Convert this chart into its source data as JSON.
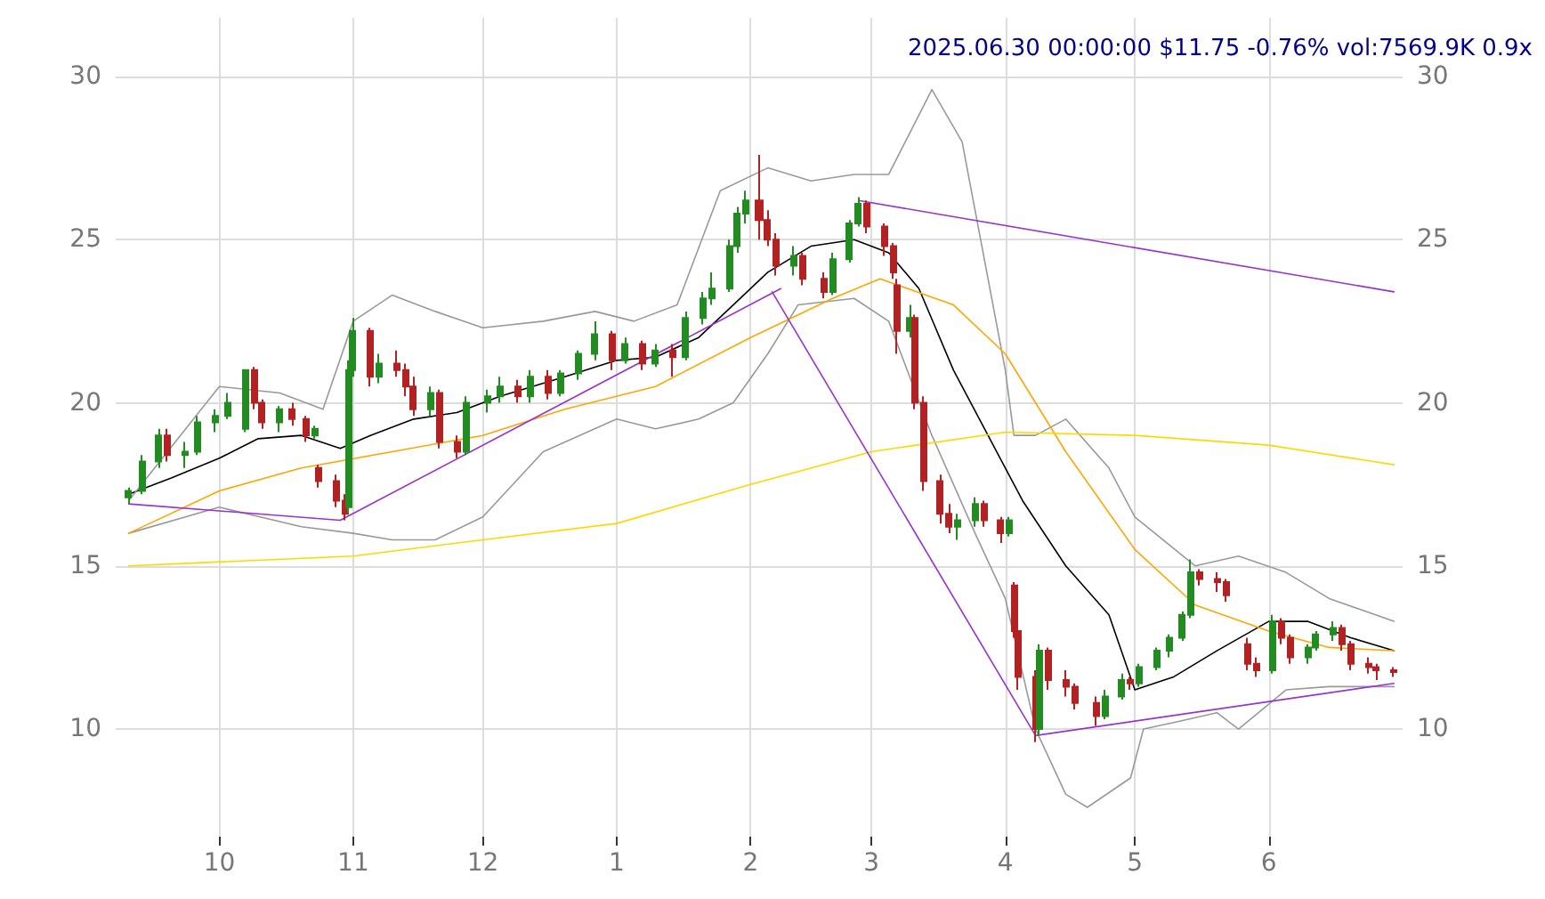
{
  "chart_data": {
    "type": "candlestick",
    "title": "2025.06.30 00:00:00 $11.75 -0.76% vol:7569.9K 0.9x",
    "xlim": [
      "2024-09-07",
      "2025-07-02"
    ],
    "xticks": [
      {
        "value": "2024-10-01",
        "label": "10"
      },
      {
        "value": "2024-11-01",
        "label": "11"
      },
      {
        "value": "2024-12-01",
        "label": "12"
      },
      {
        "value": "2025-01-01",
        "label": "1"
      },
      {
        "value": "2025-02-01",
        "label": "2"
      },
      {
        "value": "2025-03-01",
        "label": "3"
      },
      {
        "value": "2025-04-01",
        "label": "4"
      },
      {
        "value": "2025-05-01",
        "label": "5"
      },
      {
        "value": "2025-06-01",
        "label": "6"
      }
    ],
    "ylim": [
      6.7,
      31.8
    ],
    "yticks": [
      10,
      15,
      20,
      25,
      30
    ],
    "y2lim": [
      6.7,
      31.8
    ],
    "y2ticks": [
      10,
      15,
      20,
      25,
      30
    ],
    "grid": true,
    "marker": "none",
    "line_style": "solid",
    "series": [
      {
        "colors": [
          "#228b22",
          "#228b22",
          "#228b22",
          "#b22222",
          "#228b22",
          "#228b22",
          "#228b22",
          "#228b22",
          "#228b22",
          "#b22222",
          "#b22222",
          "#228b22",
          "#b22222",
          "#b22222",
          "#228b22",
          "#b22222",
          "#b22222",
          "#b22222",
          "#228b22",
          "#228b22",
          "#b22222",
          "#228b22",
          "#b22222",
          "#b22222",
          "#b22222",
          "#228b22",
          "#b22222",
          "#b22222",
          "#228b22",
          "#228b22",
          "#228b22",
          "#b22222",
          "#228b22",
          "#b22222",
          "#228b22",
          "#228b22",
          "#228b22",
          "#b22222",
          "#228b22",
          "#b22222",
          "#228b22",
          "#b22222",
          "#228b22",
          "#228b22",
          "#228b22",
          "#228b22",
          "#228b22",
          "#228b22",
          "#b22222",
          "#b22222",
          "#b22222",
          "#228b22",
          "#b22222",
          "#b22222",
          "#228b22",
          "#228b22",
          "#228b22",
          "#b22222",
          "#b22222",
          "#b22222",
          "#b22222",
          "#228b22",
          "#b22222",
          "#b22222",
          "#b22222",
          "#b22222",
          "#228b22",
          "#228b22",
          "#b22222",
          "#b22222",
          "#228b22",
          "#b22222",
          "#b22222",
          "#b22222",
          "#228b22",
          "#b22222",
          "#b22222",
          "#b22222",
          "#b22222",
          "#228b22",
          "#228b22",
          "#b22222",
          "#228b22",
          "#228b22",
          "#228b22",
          "#228b22",
          "#228b22",
          "#b22222",
          "#b22222",
          "#b22222",
          "#b22222",
          "#b22222",
          "#228b22",
          "#b22222",
          "#b22222",
          "#228b22",
          "#228b22",
          "#228b22",
          "#b22222",
          "#b22222",
          "#b22222",
          "#b22222",
          "#b22222"
        ],
        "x": [
          "2024-09-10",
          "2024-09-13",
          "2024-09-17",
          "2024-09-19",
          "2024-09-23",
          "2024-09-26",
          "2024-09-30",
          "2024-10-03",
          "2024-10-07",
          "2024-10-09",
          "2024-10-11",
          "2024-10-15",
          "2024-10-18",
          "2024-10-21",
          "2024-10-23",
          "2024-10-24",
          "2024-10-28",
          "2024-10-30",
          "2024-10-31",
          "2024-11-01",
          "2024-11-05",
          "2024-11-07",
          "2024-11-11",
          "2024-11-13",
          "2024-11-15",
          "2024-11-19",
          "2024-11-21",
          "2024-11-25",
          "2024-11-27",
          "2024-12-02",
          "2024-12-05",
          "2024-12-09",
          "2024-12-12",
          "2024-12-16",
          "2024-12-19",
          "2024-12-23",
          "2024-12-27",
          "2024-12-31",
          "2025-01-03",
          "2025-01-07",
          "2025-01-10",
          "2025-01-14",
          "2025-01-17",
          "2025-01-21",
          "2025-01-23",
          "2025-01-27",
          "2025-01-29",
          "2025-01-31",
          "2025-02-03",
          "2025-02-05",
          "2025-02-07",
          "2025-02-11",
          "2025-02-13",
          "2025-02-18",
          "2025-02-20",
          "2025-02-24",
          "2025-02-26",
          "2025-02-28",
          "2025-03-04",
          "2025-03-06",
          "2025-03-07",
          "2025-03-10",
          "2025-03-11",
          "2025-03-13",
          "2025-03-17",
          "2025-03-19",
          "2025-03-21",
          "2025-03-25",
          "2025-03-27",
          "2025-03-31",
          "2025-04-02",
          "2025-04-03",
          "2025-04-04",
          "2025-04-08",
          "2025-04-09",
          "2025-04-11",
          "2025-04-15",
          "2025-04-17",
          "2025-04-22",
          "2025-04-24",
          "2025-04-28",
          "2025-04-30",
          "2025-05-02",
          "2025-05-06",
          "2025-05-09",
          "2025-05-12",
          "2025-05-14",
          "2025-05-16",
          "2025-05-20",
          "2025-05-22",
          "2025-05-27",
          "2025-05-29",
          "2025-06-02",
          "2025-06-04",
          "2025-06-06",
          "2025-06-10",
          "2025-06-12",
          "2025-06-16",
          "2025-06-18",
          "2025-06-20",
          "2025-06-24",
          "2025-06-26",
          "2025-06-30"
        ],
        "ohlc": [
          [
            17.1,
            17.4,
            16.9,
            17.3
          ],
          [
            17.3,
            18.4,
            17.2,
            18.2
          ],
          [
            18.2,
            19.2,
            18.0,
            19.0
          ],
          [
            19.0,
            19.2,
            18.2,
            18.4
          ],
          [
            18.4,
            18.8,
            18.0,
            18.5
          ],
          [
            18.5,
            19.6,
            18.4,
            19.4
          ],
          [
            19.4,
            19.8,
            19.1,
            19.6
          ],
          [
            19.6,
            20.3,
            19.5,
            20.0
          ],
          [
            19.2,
            21.0,
            19.1,
            21.0
          ],
          [
            21.0,
            21.1,
            19.8,
            20.0
          ],
          [
            20.0,
            20.1,
            19.2,
            19.4
          ],
          [
            19.4,
            19.9,
            19.1,
            19.8
          ],
          [
            19.8,
            20.0,
            19.3,
            19.5
          ],
          [
            19.5,
            19.6,
            18.8,
            19.0
          ],
          [
            19.0,
            19.3,
            18.9,
            19.2
          ],
          [
            18.0,
            18.1,
            17.4,
            17.6
          ],
          [
            17.6,
            17.8,
            16.8,
            17.0
          ],
          [
            17.0,
            17.2,
            16.4,
            16.6
          ],
          [
            16.8,
            21.3,
            16.6,
            21.0
          ],
          [
            21.0,
            22.6,
            20.8,
            22.2
          ],
          [
            22.2,
            22.3,
            20.5,
            20.8
          ],
          [
            20.8,
            21.5,
            20.6,
            21.2
          ],
          [
            21.2,
            21.6,
            20.8,
            21.0
          ],
          [
            21.0,
            21.2,
            20.2,
            20.5
          ],
          [
            20.5,
            20.8,
            19.6,
            19.8
          ],
          [
            19.8,
            20.5,
            19.6,
            20.3
          ],
          [
            20.3,
            20.4,
            18.6,
            18.8
          ],
          [
            18.8,
            19.0,
            18.3,
            18.5
          ],
          [
            18.5,
            20.2,
            18.4,
            20.0
          ],
          [
            20.0,
            20.4,
            19.7,
            20.2
          ],
          [
            20.2,
            20.8,
            20.0,
            20.5
          ],
          [
            20.5,
            20.7,
            20.0,
            20.2
          ],
          [
            20.2,
            21.0,
            20.0,
            20.8
          ],
          [
            20.8,
            21.0,
            20.1,
            20.3
          ],
          [
            20.3,
            21.0,
            20.2,
            20.9
          ],
          [
            20.9,
            21.6,
            20.7,
            21.5
          ],
          [
            21.5,
            22.5,
            21.3,
            22.1
          ],
          [
            22.1,
            22.2,
            21.0,
            21.3
          ],
          [
            21.3,
            22.0,
            21.2,
            21.8
          ],
          [
            21.8,
            21.9,
            21.0,
            21.2
          ],
          [
            21.2,
            21.8,
            21.1,
            21.6
          ],
          [
            21.6,
            21.8,
            20.8,
            21.4
          ],
          [
            21.4,
            22.8,
            21.3,
            22.6
          ],
          [
            22.6,
            23.4,
            22.4,
            23.2
          ],
          [
            23.2,
            24.0,
            23.0,
            23.5
          ],
          [
            23.5,
            25.0,
            23.4,
            24.8
          ],
          [
            24.8,
            26.0,
            24.6,
            25.8
          ],
          [
            25.8,
            26.5,
            25.5,
            26.2
          ],
          [
            26.2,
            27.6,
            25.0,
            25.6
          ],
          [
            25.6,
            25.9,
            24.8,
            25.0
          ],
          [
            25.0,
            25.2,
            23.9,
            24.2
          ],
          [
            24.2,
            24.8,
            23.9,
            24.5
          ],
          [
            24.5,
            24.6,
            23.6,
            23.8
          ],
          [
            23.8,
            24.0,
            23.2,
            23.4
          ],
          [
            23.4,
            24.6,
            23.3,
            24.4
          ],
          [
            24.4,
            25.6,
            24.3,
            25.5
          ],
          [
            25.5,
            26.3,
            25.4,
            26.1
          ],
          [
            26.1,
            26.2,
            25.2,
            25.4
          ],
          [
            25.4,
            25.5,
            24.5,
            24.8
          ],
          [
            24.8,
            24.9,
            23.8,
            24.0
          ],
          [
            23.6,
            23.8,
            21.5,
            22.2
          ],
          [
            22.2,
            23.0,
            22.0,
            22.6
          ],
          [
            22.6,
            22.7,
            19.8,
            20.0
          ],
          [
            20.0,
            20.2,
            17.3,
            17.6
          ],
          [
            17.6,
            17.8,
            16.3,
            16.6
          ],
          [
            16.6,
            16.9,
            16.0,
            16.2
          ],
          [
            16.2,
            16.6,
            15.8,
            16.4
          ],
          [
            16.4,
            17.1,
            16.2,
            16.9
          ],
          [
            16.9,
            17.0,
            16.2,
            16.4
          ],
          [
            16.4,
            16.5,
            15.7,
            16.0
          ],
          [
            16.0,
            16.5,
            15.9,
            16.4
          ],
          [
            14.4,
            14.5,
            12.8,
            13.0
          ],
          [
            13.0,
            13.1,
            11.2,
            11.6
          ],
          [
            11.6,
            11.8,
            9.6,
            10.0
          ],
          [
            10.0,
            12.6,
            9.8,
            12.4
          ],
          [
            12.4,
            12.5,
            11.2,
            11.5
          ],
          [
            11.5,
            11.8,
            11.0,
            11.3
          ],
          [
            11.3,
            11.4,
            10.6,
            10.8
          ],
          [
            10.8,
            11.0,
            10.1,
            10.4
          ],
          [
            10.4,
            11.2,
            10.3,
            11.0
          ],
          [
            11.0,
            11.7,
            10.9,
            11.5
          ],
          [
            11.5,
            11.6,
            11.2,
            11.4
          ],
          [
            11.4,
            12.0,
            11.3,
            11.9
          ],
          [
            11.9,
            12.5,
            11.8,
            12.4
          ],
          [
            12.4,
            12.9,
            12.2,
            12.8
          ],
          [
            12.8,
            13.6,
            12.7,
            13.5
          ],
          [
            13.5,
            15.2,
            13.4,
            14.8
          ],
          [
            14.8,
            14.9,
            14.4,
            14.6
          ],
          [
            14.6,
            14.8,
            14.2,
            14.5
          ],
          [
            14.5,
            14.6,
            13.9,
            14.1
          ],
          [
            12.6,
            12.8,
            11.8,
            12.0
          ],
          [
            12.0,
            12.2,
            11.6,
            11.8
          ],
          [
            11.8,
            13.5,
            11.7,
            13.3
          ],
          [
            13.3,
            13.4,
            12.6,
            12.8
          ],
          [
            12.8,
            12.9,
            12.0,
            12.2
          ],
          [
            12.2,
            12.6,
            12.0,
            12.5
          ],
          [
            12.5,
            13.0,
            12.4,
            12.9
          ],
          [
            12.9,
            13.3,
            12.7,
            13.1
          ],
          [
            13.1,
            13.2,
            12.4,
            12.6
          ],
          [
            12.6,
            12.7,
            11.8,
            12.0
          ],
          [
            12.0,
            12.2,
            11.7,
            11.9
          ],
          [
            11.9,
            12.0,
            11.5,
            11.8
          ],
          [
            11.8,
            11.9,
            11.6,
            11.75
          ]
        ]
      },
      {
        "type": "line",
        "color": "#000000",
        "x": [
          "2024-09-10",
          "2024-09-20",
          "2024-10-01",
          "2024-10-10",
          "2024-10-20",
          "2024-10-29",
          "2024-11-05",
          "2024-11-15",
          "2024-11-25",
          "2024-12-05",
          "2024-12-20",
          "2025-01-01",
          "2025-01-10",
          "2025-01-20",
          "2025-01-28",
          "2025-02-05",
          "2025-02-15",
          "2025-02-25",
          "2025-03-05",
          "2025-03-12",
          "2025-03-20",
          "2025-03-28",
          "2025-04-05",
          "2025-04-15",
          "2025-04-25",
          "2025-05-01",
          "2025-05-10",
          "2025-05-20",
          "2025-06-01",
          "2025-06-10",
          "2025-06-20",
          "2025-06-30"
        ],
        "values": [
          17.2,
          17.7,
          18.3,
          18.9,
          19.0,
          18.6,
          19.0,
          19.5,
          19.7,
          20.2,
          20.8,
          21.3,
          21.4,
          22.0,
          23.0,
          24.0,
          24.8,
          25.0,
          24.6,
          23.5,
          21.0,
          19.0,
          17.0,
          15.0,
          13.5,
          11.2,
          11.6,
          12.4,
          13.3,
          13.3,
          12.8,
          12.4
        ]
      },
      {
        "type": "line",
        "color": "#999999",
        "x": [
          "2024-09-10",
          "2024-10-01",
          "2024-10-15",
          "2024-10-25",
          "2024-11-01",
          "2024-11-10",
          "2024-11-20",
          "2024-12-01",
          "2024-12-15",
          "2024-12-27",
          "2025-01-05",
          "2025-01-15",
          "2025-01-25",
          "2025-02-05",
          "2025-02-15",
          "2025-02-25",
          "2025-03-05",
          "2025-03-15",
          "2025-03-22",
          "2025-04-01",
          "2025-04-03",
          "2025-04-08",
          "2025-04-15",
          "2025-04-25",
          "2025-05-01",
          "2025-05-15",
          "2025-05-25",
          "2025-06-05",
          "2025-06-15",
          "2025-06-30"
        ],
        "values": [
          17.0,
          20.5,
          20.3,
          19.8,
          22.5,
          23.3,
          22.8,
          22.3,
          22.5,
          22.8,
          22.5,
          23.0,
          26.5,
          27.2,
          26.8,
          27.0,
          27.0,
          29.6,
          28.0,
          21.0,
          19.0,
          19.0,
          19.5,
          18.0,
          16.5,
          15.0,
          15.3,
          14.8,
          14.0,
          13.3
        ]
      },
      {
        "type": "line",
        "color": "#999999",
        "x": [
          "2024-09-10",
          "2024-10-01",
          "2024-10-20",
          "2024-11-01",
          "2024-11-10",
          "2024-11-20",
          "2024-12-01",
          "2024-12-15",
          "2025-01-01",
          "2025-01-10",
          "2025-01-20",
          "2025-01-28",
          "2025-02-05",
          "2025-02-12",
          "2025-02-25",
          "2025-03-05",
          "2025-03-15",
          "2025-03-25",
          "2025-04-01",
          "2025-04-08",
          "2025-04-15",
          "2025-04-20",
          "2025-04-30",
          "2025-05-03",
          "2025-05-10",
          "2025-05-20",
          "2025-05-25",
          "2025-06-05",
          "2025-06-15",
          "2025-06-30"
        ],
        "values": [
          16.0,
          16.8,
          16.2,
          16.0,
          15.8,
          15.8,
          16.5,
          18.5,
          19.5,
          19.2,
          19.5,
          20.0,
          21.5,
          23.0,
          23.2,
          22.5,
          19.0,
          16.0,
          14.0,
          10.0,
          8.0,
          7.6,
          8.5,
          10.0,
          10.2,
          10.5,
          10.0,
          11.2,
          11.3,
          11.3
        ]
      },
      {
        "type": "line",
        "color": "#ffa500",
        "x": [
          "2024-09-10",
          "2024-10-01",
          "2024-10-20",
          "2024-11-10",
          "2024-12-01",
          "2024-12-20",
          "2025-01-10",
          "2025-02-01",
          "2025-02-20",
          "2025-03-03",
          "2025-03-20",
          "2025-04-01",
          "2025-04-15",
          "2025-05-01",
          "2025-05-15",
          "2025-06-01",
          "2025-06-15",
          "2025-06-30"
        ],
        "values": [
          16.0,
          17.3,
          18.0,
          18.5,
          19.0,
          19.8,
          20.5,
          22.0,
          23.2,
          23.8,
          23.0,
          21.5,
          18.5,
          15.5,
          13.8,
          13.0,
          12.5,
          12.4
        ]
      },
      {
        "type": "line",
        "color": "#ffd700",
        "x": [
          "2024-09-10",
          "2024-11-01",
          "2024-12-01",
          "2025-01-01",
          "2025-02-01",
          "2025-03-01",
          "2025-04-01",
          "2025-05-01",
          "2025-06-01",
          "2025-06-30"
        ],
        "values": [
          15.0,
          15.3,
          15.8,
          16.3,
          17.5,
          18.5,
          19.1,
          19.0,
          18.7,
          18.1
        ]
      },
      {
        "type": "line",
        "color": "#9932cc",
        "x": [
          "2024-09-10",
          "2024-10-29"
        ],
        "values": [
          16.9,
          16.4
        ]
      },
      {
        "type": "line",
        "color": "#9932cc",
        "x": [
          "2024-10-29",
          "2025-02-08"
        ],
        "values": [
          16.4,
          23.5
        ]
      },
      {
        "type": "line",
        "color": "#9932cc",
        "x": [
          "2025-02-06",
          "2025-04-08"
        ],
        "values": [
          23.4,
          9.8
        ]
      },
      {
        "type": "line",
        "color": "#9932cc",
        "x": [
          "2025-04-08",
          "2025-06-30"
        ],
        "values": [
          9.8,
          11.4
        ]
      },
      {
        "type": "line",
        "color": "#9932cc",
        "x": [
          "2025-02-26",
          "2025-06-30"
        ],
        "values": [
          26.2,
          23.4
        ]
      }
    ]
  }
}
